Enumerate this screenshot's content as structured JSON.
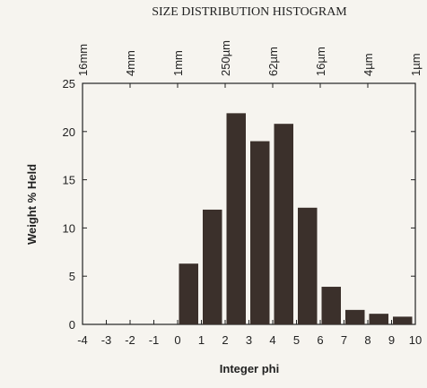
{
  "chart_data": {
    "type": "histogram",
    "title": "SIZE DISTRIBUTION HISTOGRAM",
    "xlabel": "Integer phi",
    "ylabel": "Weight % Held",
    "bins": [
      0,
      1,
      2,
      3,
      4,
      5,
      6,
      7,
      8,
      9,
      10
    ],
    "values": [
      6.3,
      11.9,
      21.9,
      19.0,
      20.8,
      12.1,
      3.9,
      1.5,
      1.1,
      0.8
    ],
    "color": "#3b302b",
    "xlim": [
      -4,
      10
    ],
    "xticks": [
      -4,
      -3,
      -2,
      -1,
      0,
      1,
      2,
      3,
      4,
      5,
      6,
      7,
      8,
      9,
      10
    ],
    "x2ticks": [
      {
        "value": -4,
        "label": "16mm"
      },
      {
        "value": -2,
        "label": "4mm"
      },
      {
        "value": 0,
        "label": "1mm"
      },
      {
        "value": 2,
        "label": "250µm"
      },
      {
        "value": 4,
        "label": "62µm"
      },
      {
        "value": 6,
        "label": "16µm"
      },
      {
        "value": 8,
        "label": "4µm"
      },
      {
        "value": 10,
        "label": "1µm"
      }
    ],
    "ylim": [
      0,
      25
    ],
    "yticks": [
      0,
      5,
      10,
      15,
      20,
      25
    ]
  }
}
